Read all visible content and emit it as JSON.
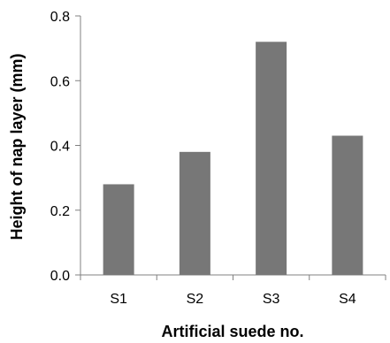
{
  "chart_data": {
    "type": "bar",
    "title": "",
    "xlabel": "Artificial suede no.",
    "ylabel": "Height of nap layer (mm)",
    "categories": [
      "S1",
      "S2",
      "S3",
      "S4"
    ],
    "values": [
      0.28,
      0.38,
      0.72,
      0.43
    ],
    "ylim": [
      0,
      0.8
    ],
    "yticks": [
      "0.0",
      "0.2",
      "0.4",
      "0.6",
      "0.8"
    ],
    "grid": false,
    "legend": "none",
    "bar_color": "#777777",
    "axis_color": "#808080"
  }
}
